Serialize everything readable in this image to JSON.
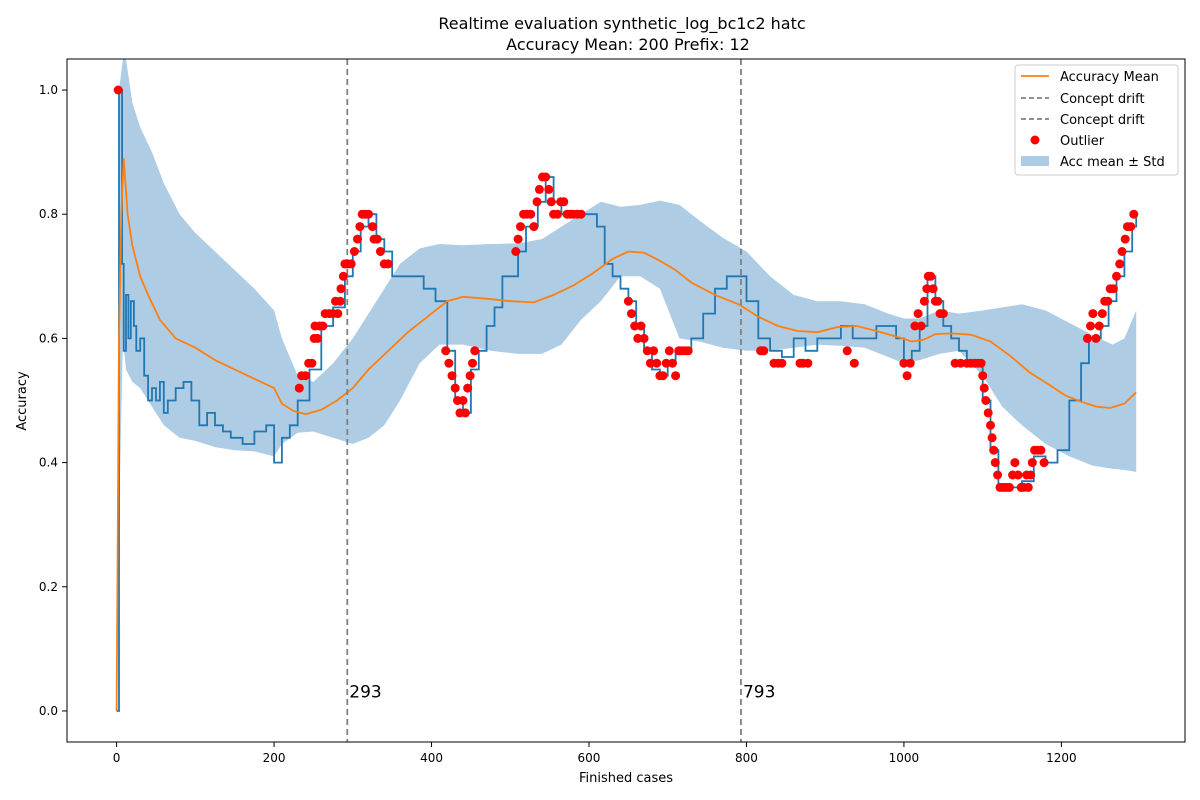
{
  "chart_data": {
    "type": "line",
    "title_line1": "Realtime evaluation synthetic_log_bc1c2 hatc",
    "title_line2": "Accuracy Mean: 200 Prefix: 12",
    "xlabel": "Finished cases",
    "ylabel": "Accuracy",
    "xlim": [
      -63,
      1357
    ],
    "ylim": [
      -0.05,
      1.05
    ],
    "x_ticks": [
      0,
      200,
      400,
      600,
      800,
      1000,
      1200
    ],
    "y_ticks": [
      0.0,
      0.2,
      0.4,
      0.6,
      0.8,
      1.0
    ],
    "x_tick_labels": [
      "0",
      "200",
      "400",
      "600",
      "800",
      "1000",
      "1200"
    ],
    "y_tick_labels": [
      "0.0",
      "0.2",
      "0.4",
      "0.6",
      "0.8",
      "1.0"
    ],
    "grid": false,
    "legend_position": "top-right",
    "legend": [
      "Accuracy Mean",
      "Concept drift",
      "Concept drift",
      "Outlier",
      "Acc mean ± Std"
    ],
    "colors": {
      "accuracy": "#1f77b4",
      "mean": "#ff7f0e",
      "band": "#aecde5",
      "drift": "#808080",
      "outlier": "#ff0000"
    },
    "concept_drifts": [
      {
        "x": 293,
        "label": "293"
      },
      {
        "x": 793,
        "label": "793"
      }
    ],
    "accuracy": [
      [
        0,
        0.0
      ],
      [
        3,
        1.0
      ],
      [
        5,
        1.0
      ],
      [
        7,
        0.72
      ],
      [
        9,
        0.58
      ],
      [
        12,
        0.67
      ],
      [
        15,
        0.6
      ],
      [
        18,
        0.66
      ],
      [
        22,
        0.62
      ],
      [
        25,
        0.58
      ],
      [
        30,
        0.6
      ],
      [
        35,
        0.54
      ],
      [
        40,
        0.5
      ],
      [
        45,
        0.52
      ],
      [
        50,
        0.5
      ],
      [
        55,
        0.53
      ],
      [
        60,
        0.48
      ],
      [
        65,
        0.5
      ],
      [
        75,
        0.52
      ],
      [
        85,
        0.53
      ],
      [
        95,
        0.5
      ],
      [
        105,
        0.46
      ],
      [
        115,
        0.48
      ],
      [
        125,
        0.46
      ],
      [
        135,
        0.45
      ],
      [
        145,
        0.44
      ],
      [
        160,
        0.43
      ],
      [
        175,
        0.45
      ],
      [
        190,
        0.46
      ],
      [
        200,
        0.4
      ],
      [
        210,
        0.44
      ],
      [
        220,
        0.46
      ],
      [
        230,
        0.5
      ],
      [
        245,
        0.55
      ],
      [
        260,
        0.62
      ],
      [
        275,
        0.65
      ],
      [
        290,
        0.7
      ],
      [
        300,
        0.74
      ],
      [
        310,
        0.78
      ],
      [
        320,
        0.8
      ],
      [
        330,
        0.76
      ],
      [
        340,
        0.74
      ],
      [
        350,
        0.7
      ],
      [
        360,
        0.7
      ],
      [
        375,
        0.7
      ],
      [
        390,
        0.68
      ],
      [
        405,
        0.66
      ],
      [
        420,
        0.58
      ],
      [
        430,
        0.5
      ],
      [
        440,
        0.48
      ],
      [
        450,
        0.55
      ],
      [
        460,
        0.58
      ],
      [
        470,
        0.62
      ],
      [
        480,
        0.65
      ],
      [
        490,
        0.7
      ],
      [
        500,
        0.7
      ],
      [
        510,
        0.74
      ],
      [
        520,
        0.78
      ],
      [
        535,
        0.82
      ],
      [
        545,
        0.86
      ],
      [
        555,
        0.82
      ],
      [
        565,
        0.8
      ],
      [
        580,
        0.8
      ],
      [
        595,
        0.8
      ],
      [
        610,
        0.78
      ],
      [
        620,
        0.72
      ],
      [
        630,
        0.7
      ],
      [
        640,
        0.68
      ],
      [
        650,
        0.66
      ],
      [
        660,
        0.62
      ],
      [
        670,
        0.58
      ],
      [
        680,
        0.55
      ],
      [
        690,
        0.54
      ],
      [
        700,
        0.56
      ],
      [
        710,
        0.58
      ],
      [
        720,
        0.58
      ],
      [
        730,
        0.6
      ],
      [
        745,
        0.64
      ],
      [
        760,
        0.68
      ],
      [
        775,
        0.7
      ],
      [
        790,
        0.7
      ],
      [
        800,
        0.66
      ],
      [
        815,
        0.6
      ],
      [
        830,
        0.58
      ],
      [
        845,
        0.57
      ],
      [
        860,
        0.6
      ],
      [
        875,
        0.58
      ],
      [
        890,
        0.6
      ],
      [
        905,
        0.6
      ],
      [
        920,
        0.62
      ],
      [
        935,
        0.6
      ],
      [
        950,
        0.6
      ],
      [
        965,
        0.62
      ],
      [
        980,
        0.62
      ],
      [
        990,
        0.6
      ],
      [
        1000,
        0.56
      ],
      [
        1010,
        0.58
      ],
      [
        1020,
        0.62
      ],
      [
        1030,
        0.7
      ],
      [
        1040,
        0.66
      ],
      [
        1050,
        0.62
      ],
      [
        1060,
        0.6
      ],
      [
        1070,
        0.58
      ],
      [
        1080,
        0.56
      ],
      [
        1090,
        0.56
      ],
      [
        1100,
        0.5
      ],
      [
        1110,
        0.42
      ],
      [
        1120,
        0.36
      ],
      [
        1135,
        0.36
      ],
      [
        1150,
        0.37
      ],
      [
        1165,
        0.41
      ],
      [
        1180,
        0.4
      ],
      [
        1195,
        0.42
      ],
      [
        1210,
        0.5
      ],
      [
        1225,
        0.56
      ],
      [
        1235,
        0.6
      ],
      [
        1250,
        0.62
      ],
      [
        1260,
        0.66
      ],
      [
        1270,
        0.7
      ],
      [
        1280,
        0.74
      ],
      [
        1290,
        0.78
      ],
      [
        1295,
        0.8
      ]
    ],
    "accuracy_mean": [
      [
        0,
        0.0
      ],
      [
        3,
        0.6
      ],
      [
        6,
        0.8
      ],
      [
        9,
        0.89
      ],
      [
        14,
        0.8
      ],
      [
        20,
        0.75
      ],
      [
        30,
        0.7
      ],
      [
        40,
        0.67
      ],
      [
        55,
        0.63
      ],
      [
        75,
        0.6
      ],
      [
        100,
        0.585
      ],
      [
        125,
        0.565
      ],
      [
        150,
        0.55
      ],
      [
        175,
        0.535
      ],
      [
        200,
        0.52
      ],
      [
        210,
        0.495
      ],
      [
        225,
        0.483
      ],
      [
        240,
        0.478
      ],
      [
        260,
        0.485
      ],
      [
        280,
        0.5
      ],
      [
        300,
        0.52
      ],
      [
        320,
        0.55
      ],
      [
        345,
        0.58
      ],
      [
        370,
        0.61
      ],
      [
        400,
        0.64
      ],
      [
        420,
        0.66
      ],
      [
        440,
        0.667
      ],
      [
        470,
        0.664
      ],
      [
        500,
        0.66
      ],
      [
        530,
        0.658
      ],
      [
        555,
        0.67
      ],
      [
        580,
        0.685
      ],
      [
        605,
        0.705
      ],
      [
        630,
        0.728
      ],
      [
        650,
        0.74
      ],
      [
        670,
        0.738
      ],
      [
        690,
        0.725
      ],
      [
        710,
        0.71
      ],
      [
        730,
        0.69
      ],
      [
        760,
        0.67
      ],
      [
        790,
        0.655
      ],
      [
        815,
        0.635
      ],
      [
        840,
        0.62
      ],
      [
        865,
        0.612
      ],
      [
        890,
        0.61
      ],
      [
        915,
        0.618
      ],
      [
        940,
        0.62
      ],
      [
        965,
        0.612
      ],
      [
        990,
        0.603
      ],
      [
        1010,
        0.595
      ],
      [
        1025,
        0.598
      ],
      [
        1040,
        0.607
      ],
      [
        1060,
        0.608
      ],
      [
        1085,
        0.606
      ],
      [
        1110,
        0.595
      ],
      [
        1135,
        0.572
      ],
      [
        1160,
        0.545
      ],
      [
        1185,
        0.525
      ],
      [
        1205,
        0.508
      ],
      [
        1225,
        0.498
      ],
      [
        1245,
        0.49
      ],
      [
        1262,
        0.488
      ],
      [
        1280,
        0.495
      ],
      [
        1295,
        0.513
      ]
    ],
    "std_band": [
      [
        0,
        0.0,
        0.0
      ],
      [
        3,
        0.3,
        1.0
      ],
      [
        8,
        0.6,
        1.05
      ],
      [
        12,
        0.55,
        1.05
      ],
      [
        20,
        0.53,
        0.98
      ],
      [
        30,
        0.52,
        0.94
      ],
      [
        45,
        0.49,
        0.9
      ],
      [
        60,
        0.46,
        0.85
      ],
      [
        80,
        0.44,
        0.8
      ],
      [
        100,
        0.435,
        0.77
      ],
      [
        125,
        0.425,
        0.74
      ],
      [
        150,
        0.42,
        0.71
      ],
      [
        175,
        0.418,
        0.68
      ],
      [
        200,
        0.41,
        0.645
      ],
      [
        210,
        0.43,
        0.6
      ],
      [
        230,
        0.448,
        0.54
      ],
      [
        250,
        0.45,
        0.53
      ],
      [
        275,
        0.44,
        0.56
      ],
      [
        300,
        0.43,
        0.6
      ],
      [
        320,
        0.44,
        0.64
      ],
      [
        340,
        0.46,
        0.68
      ],
      [
        360,
        0.5,
        0.72
      ],
      [
        385,
        0.56,
        0.745
      ],
      [
        410,
        0.59,
        0.752
      ],
      [
        440,
        0.59,
        0.75
      ],
      [
        475,
        0.58,
        0.752
      ],
      [
        510,
        0.575,
        0.753
      ],
      [
        540,
        0.575,
        0.76
      ],
      [
        565,
        0.59,
        0.78
      ],
      [
        590,
        0.63,
        0.8
      ],
      [
        615,
        0.66,
        0.82
      ],
      [
        640,
        0.7,
        0.812
      ],
      [
        665,
        0.7,
        0.815
      ],
      [
        690,
        0.68,
        0.822
      ],
      [
        715,
        0.6,
        0.815
      ],
      [
        740,
        0.595,
        0.79
      ],
      [
        770,
        0.585,
        0.762
      ],
      [
        800,
        0.58,
        0.74
      ],
      [
        830,
        0.58,
        0.7
      ],
      [
        860,
        0.585,
        0.67
      ],
      [
        890,
        0.59,
        0.66
      ],
      [
        920,
        0.588,
        0.66
      ],
      [
        950,
        0.585,
        0.655
      ],
      [
        980,
        0.57,
        0.64
      ],
      [
        1000,
        0.56,
        0.632
      ],
      [
        1020,
        0.565,
        0.632
      ],
      [
        1045,
        0.575,
        0.645
      ],
      [
        1070,
        0.58,
        0.64
      ],
      [
        1100,
        0.54,
        0.645
      ],
      [
        1125,
        0.49,
        0.65
      ],
      [
        1150,
        0.46,
        0.655
      ],
      [
        1180,
        0.43,
        0.645
      ],
      [
        1210,
        0.41,
        0.625
      ],
      [
        1240,
        0.395,
        0.605
      ],
      [
        1265,
        0.39,
        0.59
      ],
      [
        1280,
        0.388,
        0.6
      ],
      [
        1295,
        0.385,
        0.645
      ]
    ],
    "outliers": [
      [
        2,
        1.0
      ],
      [
        232,
        0.52
      ],
      [
        235,
        0.54
      ],
      [
        240,
        0.54
      ],
      [
        244,
        0.56
      ],
      [
        248,
        0.56
      ],
      [
        251,
        0.6
      ],
      [
        252,
        0.62
      ],
      [
        255,
        0.6
      ],
      [
        258,
        0.62
      ],
      [
        262,
        0.62
      ],
      [
        265,
        0.64
      ],
      [
        270,
        0.64
      ],
      [
        275,
        0.64
      ],
      [
        278,
        0.66
      ],
      [
        281,
        0.64
      ],
      [
        284,
        0.66
      ],
      [
        285,
        0.68
      ],
      [
        288,
        0.7
      ],
      [
        290,
        0.72
      ],
      [
        293,
        0.72
      ],
      [
        298,
        0.72
      ],
      [
        302,
        0.74
      ],
      [
        306,
        0.76
      ],
      [
        309,
        0.78
      ],
      [
        312,
        0.8
      ],
      [
        316,
        0.8
      ],
      [
        320,
        0.8
      ],
      [
        325,
        0.78
      ],
      [
        327,
        0.76
      ],
      [
        331,
        0.76
      ],
      [
        335,
        0.74
      ],
      [
        340,
        0.72
      ],
      [
        345,
        0.72
      ],
      [
        418,
        0.58
      ],
      [
        422,
        0.56
      ],
      [
        426,
        0.54
      ],
      [
        430,
        0.52
      ],
      [
        433,
        0.5
      ],
      [
        436,
        0.48
      ],
      [
        440,
        0.5
      ],
      [
        443,
        0.48
      ],
      [
        446,
        0.52
      ],
      [
        449,
        0.54
      ],
      [
        452,
        0.56
      ],
      [
        455,
        0.58
      ],
      [
        507,
        0.74
      ],
      [
        510,
        0.76
      ],
      [
        513,
        0.78
      ],
      [
        517,
        0.8
      ],
      [
        521,
        0.8
      ],
      [
        526,
        0.8
      ],
      [
        530,
        0.78
      ],
      [
        534,
        0.82
      ],
      [
        537,
        0.84
      ],
      [
        541,
        0.86
      ],
      [
        545,
        0.86
      ],
      [
        549,
        0.84
      ],
      [
        552,
        0.82
      ],
      [
        555,
        0.8
      ],
      [
        560,
        0.8
      ],
      [
        564,
        0.82
      ],
      [
        568,
        0.82
      ],
      [
        572,
        0.8
      ],
      [
        576,
        0.8
      ],
      [
        580,
        0.8
      ],
      [
        585,
        0.8
      ],
      [
        590,
        0.8
      ],
      [
        650,
        0.66
      ],
      [
        654,
        0.64
      ],
      [
        658,
        0.62
      ],
      [
        662,
        0.6
      ],
      [
        666,
        0.62
      ],
      [
        670,
        0.6
      ],
      [
        674,
        0.58
      ],
      [
        678,
        0.56
      ],
      [
        682,
        0.58
      ],
      [
        686,
        0.56
      ],
      [
        690,
        0.54
      ],
      [
        694,
        0.54
      ],
      [
        698,
        0.56
      ],
      [
        702,
        0.58
      ],
      [
        706,
        0.56
      ],
      [
        710,
        0.54
      ],
      [
        714,
        0.58
      ],
      [
        718,
        0.58
      ],
      [
        722,
        0.58
      ],
      [
        726,
        0.58
      ],
      [
        818,
        0.58
      ],
      [
        822,
        0.58
      ],
      [
        835,
        0.56
      ],
      [
        840,
        0.56
      ],
      [
        845,
        0.56
      ],
      [
        868,
        0.56
      ],
      [
        872,
        0.56
      ],
      [
        878,
        0.56
      ],
      [
        928,
        0.58
      ],
      [
        937,
        0.56
      ],
      [
        1000,
        0.56
      ],
      [
        1004,
        0.54
      ],
      [
        1008,
        0.56
      ],
      [
        1014,
        0.62
      ],
      [
        1018,
        0.64
      ],
      [
        1022,
        0.62
      ],
      [
        1026,
        0.66
      ],
      [
        1029,
        0.68
      ],
      [
        1031,
        0.7
      ],
      [
        1034,
        0.7
      ],
      [
        1037,
        0.68
      ],
      [
        1040,
        0.66
      ],
      [
        1043,
        0.66
      ],
      [
        1046,
        0.64
      ],
      [
        1050,
        0.64
      ],
      [
        1065,
        0.56
      ],
      [
        1072,
        0.56
      ],
      [
        1080,
        0.56
      ],
      [
        1085,
        0.56
      ],
      [
        1090,
        0.56
      ],
      [
        1094,
        0.56
      ],
      [
        1098,
        0.56
      ],
      [
        1100,
        0.54
      ],
      [
        1102,
        0.52
      ],
      [
        1104,
        0.5
      ],
      [
        1107,
        0.48
      ],
      [
        1110,
        0.46
      ],
      [
        1112,
        0.44
      ],
      [
        1114,
        0.42
      ],
      [
        1116,
        0.4
      ],
      [
        1119,
        0.38
      ],
      [
        1122,
        0.36
      ],
      [
        1126,
        0.36
      ],
      [
        1130,
        0.36
      ],
      [
        1134,
        0.36
      ],
      [
        1138,
        0.38
      ],
      [
        1141,
        0.4
      ],
      [
        1145,
        0.38
      ],
      [
        1149,
        0.36
      ],
      [
        1152,
        0.36
      ],
      [
        1156,
        0.38
      ],
      [
        1158,
        0.36
      ],
      [
        1161,
        0.38
      ],
      [
        1163,
        0.4
      ],
      [
        1166,
        0.42
      ],
      [
        1170,
        0.42
      ],
      [
        1174,
        0.42
      ],
      [
        1178,
        0.4
      ],
      [
        1233,
        0.6
      ],
      [
        1237,
        0.62
      ],
      [
        1240,
        0.64
      ],
      [
        1244,
        0.6
      ],
      [
        1248,
        0.62
      ],
      [
        1252,
        0.64
      ],
      [
        1255,
        0.66
      ],
      [
        1259,
        0.66
      ],
      [
        1262,
        0.68
      ],
      [
        1266,
        0.68
      ],
      [
        1270,
        0.7
      ],
      [
        1274,
        0.72
      ],
      [
        1277,
        0.74
      ],
      [
        1281,
        0.76
      ],
      [
        1284,
        0.78
      ],
      [
        1288,
        0.78
      ],
      [
        1292,
        0.8
      ]
    ]
  }
}
